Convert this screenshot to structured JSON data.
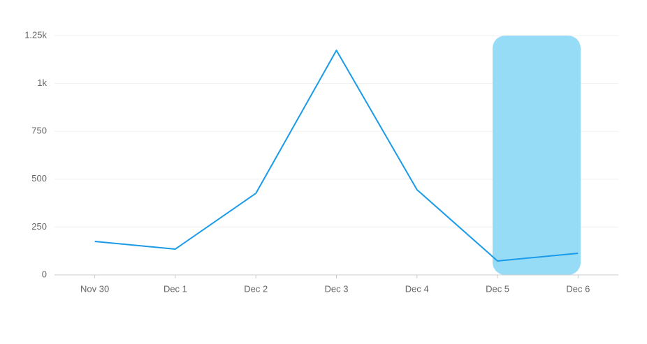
{
  "chart_data": {
    "type": "line",
    "categories": [
      "Nov 30",
      "Dec 1",
      "Dec 2",
      "Dec 3",
      "Dec 4",
      "Dec 5",
      "Dec 6"
    ],
    "series": [
      {
        "color": "#1a9be8",
        "values": [
          175,
          135,
          426,
          1173,
          445,
          73,
          113
        ]
      }
    ],
    "ylim": [
      0,
      1250
    ],
    "yticks": [
      0,
      250,
      500,
      750,
      {
        "value": 1000,
        "label": "1k"
      },
      {
        "value": 1250,
        "label": "1.25k"
      }
    ],
    "grid": true
  }
}
